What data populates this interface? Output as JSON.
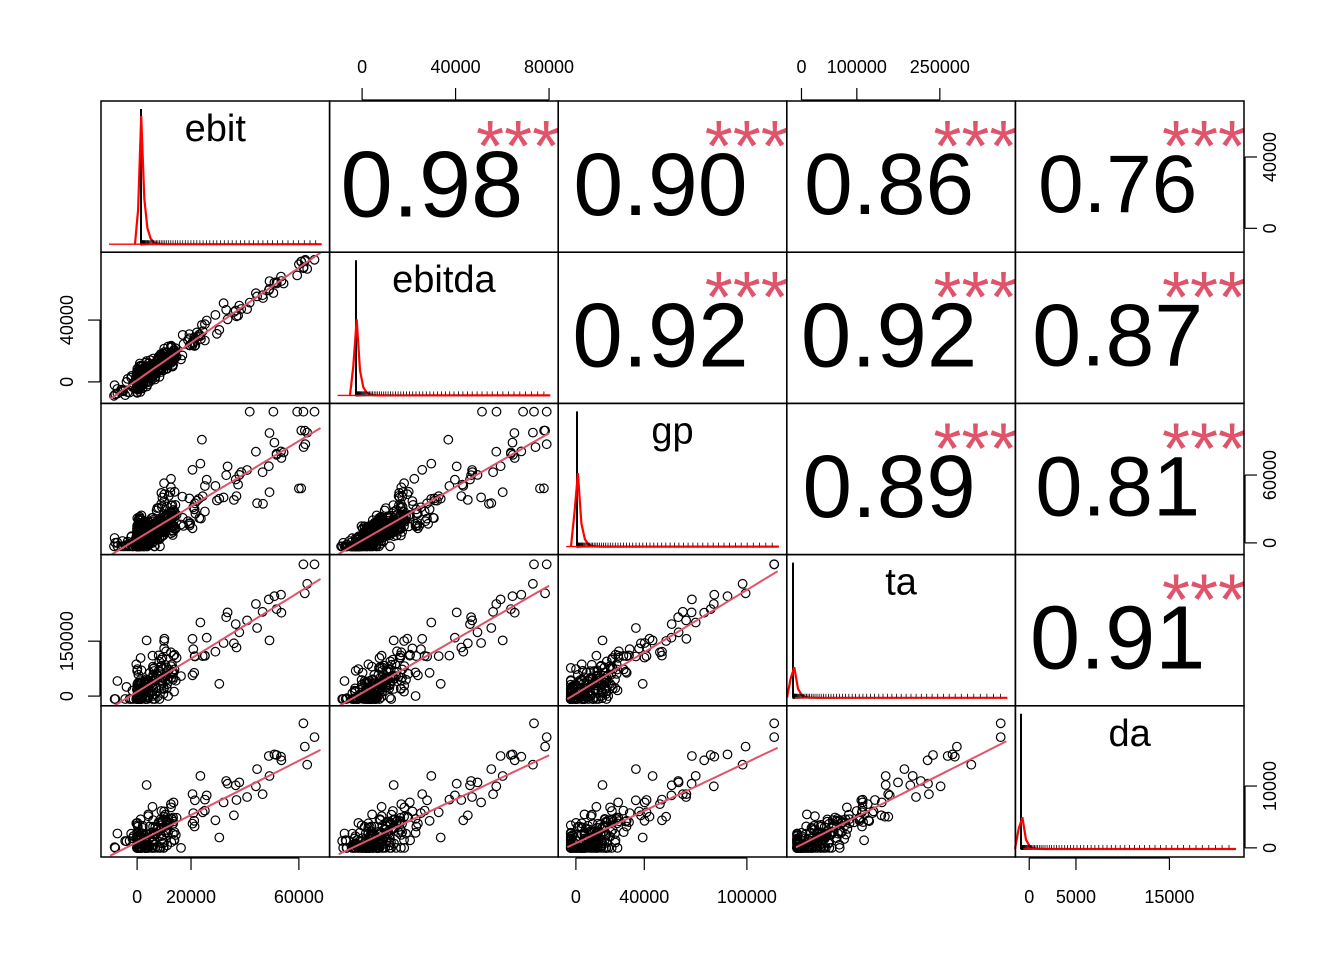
{
  "chart_data": {
    "type": "scatter",
    "title": "",
    "variables": [
      "ebit",
      "ebitda",
      "gp",
      "ta",
      "da"
    ],
    "correlations": [
      {
        "row": 0,
        "col": 1,
        "value": "0.98",
        "stars": "***"
      },
      {
        "row": 0,
        "col": 2,
        "value": "0.90",
        "stars": "***"
      },
      {
        "row": 0,
        "col": 3,
        "value": "0.86",
        "stars": "***"
      },
      {
        "row": 0,
        "col": 4,
        "value": "0.76",
        "stars": "***"
      },
      {
        "row": 1,
        "col": 2,
        "value": "0.92",
        "stars": "***"
      },
      {
        "row": 1,
        "col": 3,
        "value": "0.92",
        "stars": "***"
      },
      {
        "row": 1,
        "col": 4,
        "value": "0.87",
        "stars": "***"
      },
      {
        "row": 2,
        "col": 3,
        "value": "0.89",
        "stars": "***"
      },
      {
        "row": 2,
        "col": 4,
        "value": "0.81",
        "stars": "***"
      },
      {
        "row": 3,
        "col": 4,
        "value": "0.91",
        "stars": "***"
      }
    ],
    "ranges": {
      "ebit": [
        -10000,
        68000
      ],
      "ebitda": [
        -10000,
        80000
      ],
      "gp": [
        -5000,
        118000
      ],
      "ta": [
        -10000,
        370000
      ],
      "da": [
        -500,
        22000
      ]
    },
    "axes": {
      "top": [
        {
          "col": 1,
          "ticks": [
            0,
            40000,
            80000
          ]
        },
        {
          "col": 3,
          "ticks": [
            0,
            100000,
            250000
          ]
        }
      ],
      "bottom": [
        {
          "col": 0,
          "ticks": [
            0,
            20000,
            60000
          ]
        },
        {
          "col": 2,
          "ticks": [
            0,
            40000,
            100000
          ]
        },
        {
          "col": 4,
          "ticks": [
            0,
            5000,
            15000
          ]
        }
      ],
      "left": [
        {
          "row": 1,
          "ticks": [
            0,
            40000
          ]
        },
        {
          "row": 3,
          "ticks": [
            0,
            150000
          ]
        }
      ],
      "right": [
        {
          "row": 0,
          "ticks": [
            0,
            40000
          ]
        },
        {
          "row": 2,
          "ticks": [
            0,
            60000
          ]
        },
        {
          "row": 4,
          "ticks": [
            0,
            10000
          ]
        }
      ]
    },
    "colors": {
      "points": "#000000",
      "smooth": "#DF536B",
      "density": "#FF0000",
      "stars": "#DF536B"
    }
  }
}
